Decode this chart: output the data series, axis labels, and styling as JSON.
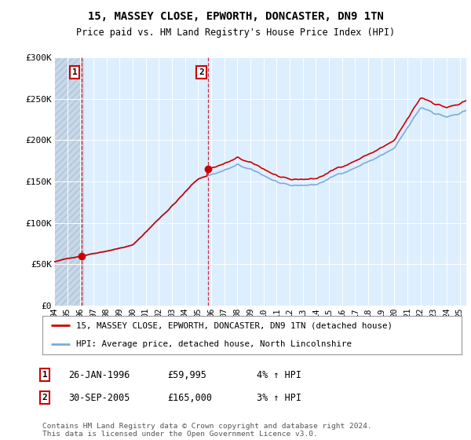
{
  "title": "15, MASSEY CLOSE, EPWORTH, DONCASTER, DN9 1TN",
  "subtitle": "Price paid vs. HM Land Registry's House Price Index (HPI)",
  "legend_line1": "15, MASSEY CLOSE, EPWORTH, DONCASTER, DN9 1TN (detached house)",
  "legend_line2": "HPI: Average price, detached house, North Lincolnshire",
  "sale1_label": "1",
  "sale1_date": "26-JAN-1996",
  "sale1_price": "£59,995",
  "sale1_hpi": "4% ↑ HPI",
  "sale2_label": "2",
  "sale2_date": "30-SEP-2005",
  "sale2_price": "£165,000",
  "sale2_hpi": "3% ↑ HPI",
  "footer": "Contains HM Land Registry data © Crown copyright and database right 2024.\nThis data is licensed under the Open Government Licence v3.0.",
  "sale_color": "#cc0000",
  "hpi_color": "#7aaddc",
  "background_color": "#ffffff",
  "plot_bg_color": "#ddeeff",
  "hatch_bg_color": "#c8d8e8",
  "ylim": [
    0,
    300000
  ],
  "xlim_start": 1994.0,
  "xlim_end": 2025.5,
  "sale1_year": 1996.07,
  "sale1_price_val": 59995,
  "sale2_year": 2005.75,
  "sale2_price_val": 165000
}
